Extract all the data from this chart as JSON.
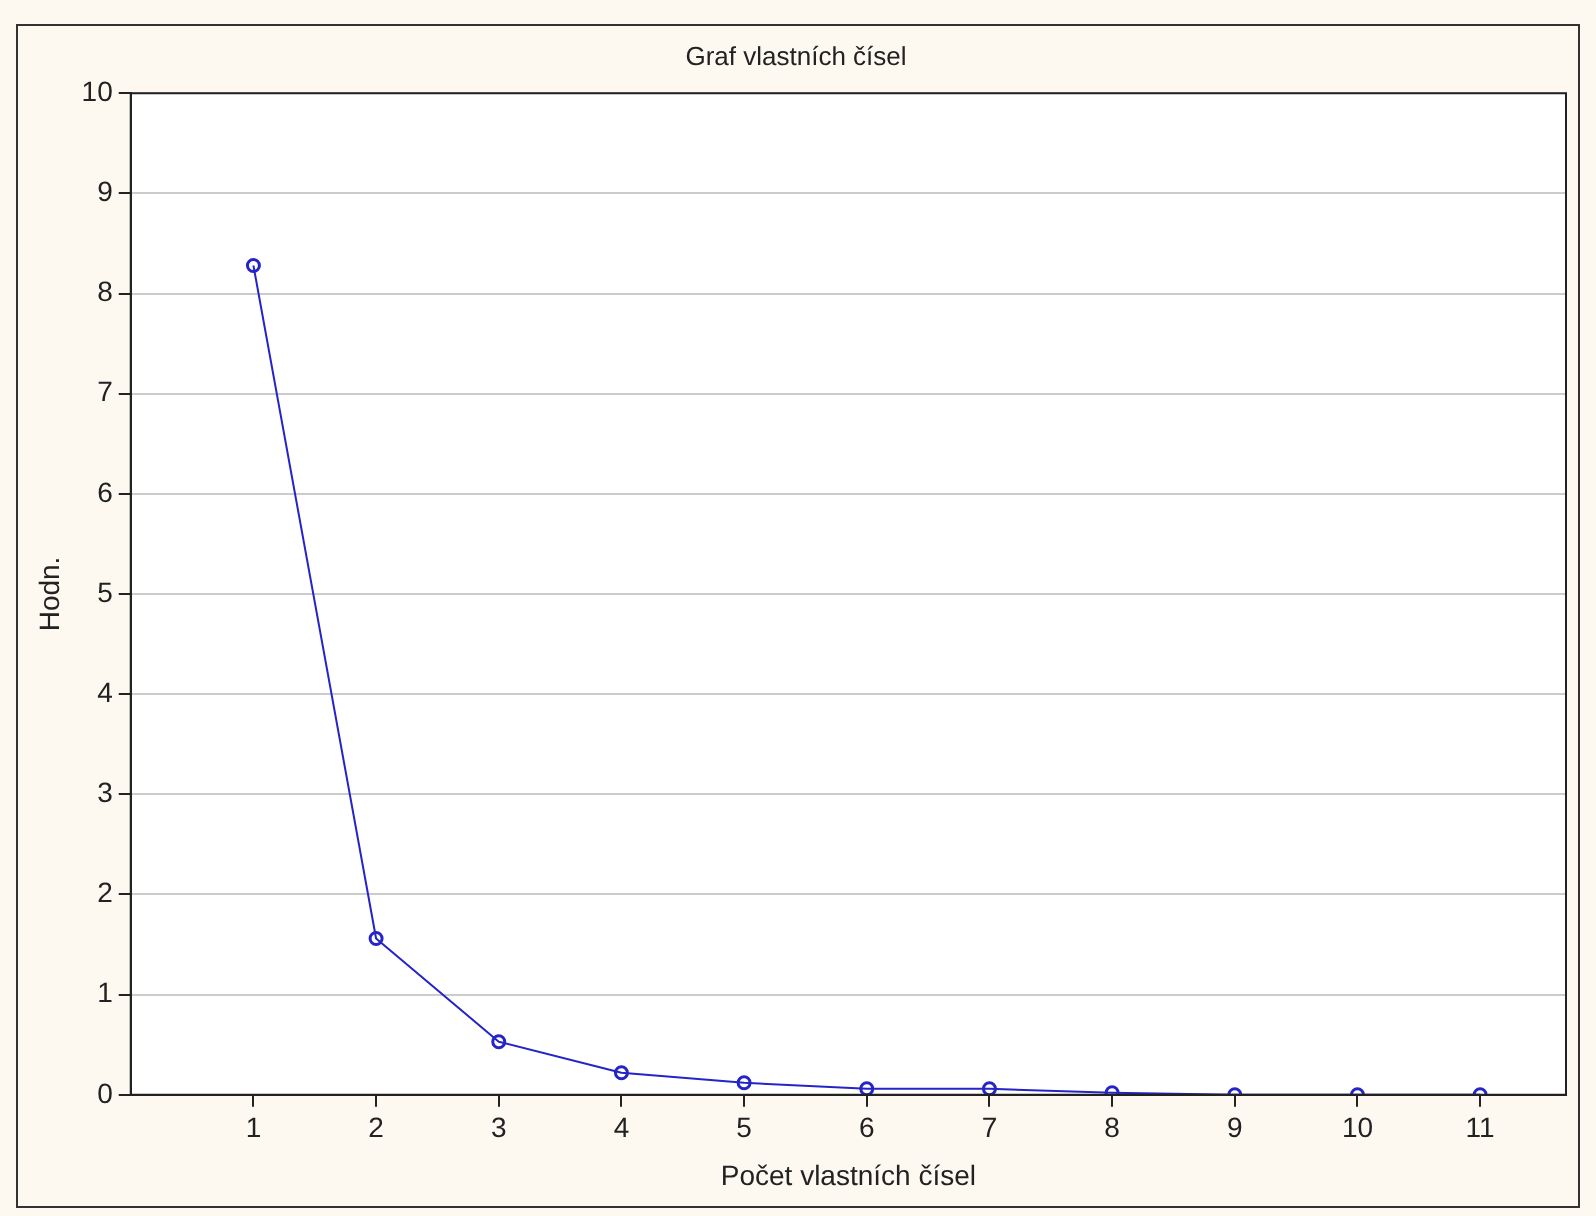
{
  "chart_data": {
    "type": "line",
    "title": "Graf vlastních čísel",
    "xlabel": "Počet vlastních čísel",
    "ylabel": "Hodn.",
    "x": [
      1,
      2,
      3,
      4,
      5,
      6,
      7,
      8,
      9,
      10,
      11
    ],
    "series": [
      {
        "color": "#2424c8",
        "values": [
          8.28,
          1.56,
          0.53,
          0.22,
          0.12,
          0.06,
          0.06,
          0.02,
          0,
          0,
          0
        ]
      }
    ],
    "xlim": [
      0,
      11.7
    ],
    "xticks": [
      1,
      2,
      3,
      4,
      5,
      6,
      7,
      8,
      9,
      10,
      11
    ],
    "ylim": [
      0,
      10
    ],
    "yticks": [
      0,
      1,
      2,
      3,
      4,
      5,
      6,
      7,
      8,
      9,
      10
    ],
    "grid": "y",
    "legend": false,
    "marker": "circle",
    "line_style": "solid"
  }
}
